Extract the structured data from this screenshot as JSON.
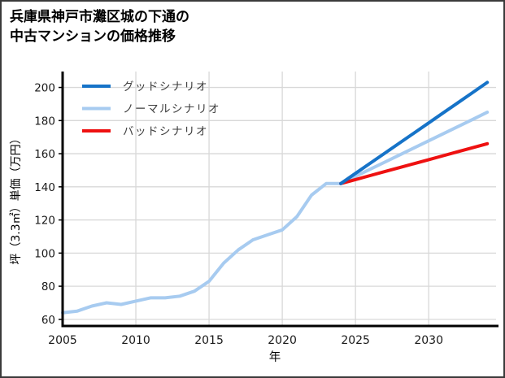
{
  "frame": {
    "background": "#ffffff",
    "border_color": "#3a3a3a"
  },
  "chart_data": {
    "type": "line",
    "title_line1": "兵庫県神戸市灘区城の下通の",
    "title_line2": "中古マンションの価格推移",
    "xlabel": "年",
    "ylabel": "坪（3.3㎡）単価（万円）",
    "x_ticks": [
      2005,
      2010,
      2015,
      2020,
      2025,
      2030
    ],
    "y_ticks": [
      60,
      80,
      100,
      120,
      140,
      160,
      180,
      200
    ],
    "xlim": [
      2005,
      2034.6
    ],
    "ylim": [
      56,
      209.6
    ],
    "grid": true,
    "grid_color": "#d8d8d8",
    "spine_color": "#000000",
    "tick_label_color": "#1a1a1a",
    "legend_position": "upper-left",
    "legend_text_color": "#3d3d3d",
    "series": [
      {
        "name": "グッドシナリオ",
        "key": "good-scenario",
        "color": "#1673c8",
        "draw_order": 3,
        "x": [
          2024,
          2025,
          2026,
          2027,
          2028,
          2029,
          2030,
          2031,
          2032,
          2033,
          2034
        ],
        "y": [
          142,
          148.1,
          154.2,
          160.3,
          166.4,
          172.5,
          178.6,
          184.7,
          190.8,
          196.9,
          203
        ]
      },
      {
        "name": "ノーマルシナリオ",
        "key": "normal-scenario",
        "color": "#a7cbf0",
        "draw_order": 1,
        "x": [
          2005,
          2006,
          2007,
          2008,
          2009,
          2010,
          2011,
          2012,
          2013,
          2014,
          2015,
          2016,
          2017,
          2018,
          2019,
          2020,
          2021,
          2022,
          2023,
          2024,
          2025,
          2026,
          2027,
          2028,
          2029,
          2030,
          2031,
          2032,
          2033,
          2034
        ],
        "y": [
          64,
          65,
          68,
          70,
          69,
          71,
          73,
          73,
          74,
          77,
          83,
          94,
          102,
          108,
          111,
          114,
          122,
          135,
          142,
          142,
          146.3,
          150.6,
          154.9,
          159.2,
          163.5,
          167.8,
          172.1,
          176.4,
          180.7,
          185
        ]
      },
      {
        "name": "バッドシナリオ",
        "key": "bad-scenario",
        "color": "#ee1111",
        "draw_order": 2,
        "x": [
          2024,
          2025,
          2026,
          2027,
          2028,
          2029,
          2030,
          2031,
          2032,
          2033,
          2034
        ],
        "y": [
          142,
          144.4,
          146.8,
          149.2,
          151.6,
          154,
          156.4,
          158.8,
          161.2,
          163.6,
          166
        ]
      }
    ]
  }
}
